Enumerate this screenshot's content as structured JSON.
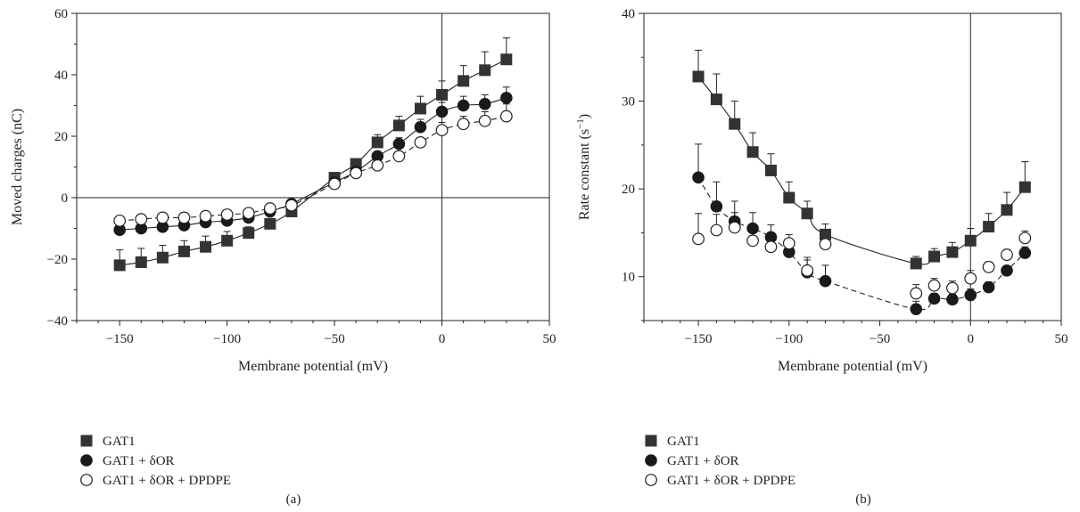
{
  "chart_data": [
    {
      "type": "scatter",
      "panel_label": "(a)",
      "xlabel": "Membrane potential (mV)",
      "ylabel": "Moved charges (nC)",
      "xlim": [
        -170,
        50
      ],
      "ylim": [
        -40,
        60
      ],
      "xticks": [
        -150,
        -100,
        -50,
        0,
        50
      ],
      "yticks": [
        -40,
        -20,
        0,
        20,
        40,
        60
      ],
      "x_tick_labels": [
        "−150",
        "−100",
        "−50",
        "0",
        "50"
      ],
      "y_tick_labels": [
        "−40",
        "−20",
        "0",
        "20",
        "40",
        "60"
      ],
      "reference_lines": {
        "x": 0,
        "y": 0
      },
      "legend_position": "bottom-left",
      "series": [
        {
          "name": "GAT1",
          "marker": "filled-square",
          "fit": "solid",
          "x": [
            -150,
            -140,
            -130,
            -120,
            -110,
            -100,
            -90,
            -80,
            -70,
            -50,
            -40,
            -30,
            -20,
            -10,
            0,
            10,
            20,
            30
          ],
          "y": [
            -22,
            -21,
            -19.5,
            -17.5,
            -16,
            -14,
            -11.5,
            -8.5,
            -4.5,
            6.5,
            11,
            18,
            23.5,
            29,
            33.5,
            38,
            41.5,
            45
          ],
          "err": [
            5,
            4.5,
            4,
            3.5,
            3.5,
            3,
            2,
            1.5,
            1,
            1.5,
            1.5,
            2.5,
            3,
            4,
            4.5,
            5,
            6,
            7
          ]
        },
        {
          "name": "GAT1 + δOR",
          "marker": "filled-circle",
          "fit": "solid",
          "x": [
            -150,
            -140,
            -130,
            -120,
            -110,
            -100,
            -90,
            -80,
            -70,
            -50,
            -40,
            -30,
            -20,
            -10,
            0,
            10,
            20,
            30
          ],
          "y": [
            -10.5,
            -10,
            -9.5,
            -9,
            -8,
            -7.5,
            -6.5,
            -4.5,
            -2,
            5,
            8.5,
            13.5,
            17.5,
            23,
            28,
            30,
            30.5,
            32.5
          ],
          "err": [
            1.5,
            1.5,
            1.5,
            1.5,
            1.5,
            1.5,
            1.5,
            1,
            1,
            1,
            1,
            1.5,
            2,
            2.5,
            3,
            3,
            3,
            3.5
          ]
        },
        {
          "name": "GAT1 + δOR + DPDPE",
          "marker": "open-circle",
          "fit": "dashed",
          "x": [
            -150,
            -140,
            -130,
            -120,
            -110,
            -100,
            -90,
            -80,
            -70,
            -50,
            -40,
            -30,
            -20,
            -10,
            0,
            10,
            20,
            30
          ],
          "y": [
            -7.5,
            -7,
            -6.5,
            -6.5,
            -6,
            -5.5,
            -5,
            -3.5,
            -2.5,
            4.5,
            8,
            10.5,
            13.5,
            18,
            22,
            24,
            25,
            26.5
          ],
          "err": [
            1.5,
            1.5,
            1.5,
            1.5,
            1.5,
            1.5,
            1.5,
            1,
            1,
            1,
            1,
            1.5,
            1.5,
            1.5,
            2.5,
            2.5,
            3,
            4
          ]
        }
      ]
    },
    {
      "type": "scatter",
      "panel_label": "(b)",
      "xlabel": "Membrane potential (mV)",
      "ylabel": "Rate constant (s",
      "ylabel_sup": "−1",
      "ylabel_end": ")",
      "xlim": [
        -180,
        50
      ],
      "ylim": [
        5,
        40
      ],
      "xticks": [
        -150,
        -100,
        -50,
        0,
        50
      ],
      "yticks": [
        10,
        20,
        30,
        40
      ],
      "x_tick_labels": [
        "−150",
        "−100",
        "−50",
        "0",
        "50"
      ],
      "y_tick_labels": [
        "10",
        "20",
        "30",
        "40"
      ],
      "reference_lines": {
        "x": 0
      },
      "legend_position": "bottom-left",
      "series": [
        {
          "name": "GAT1",
          "marker": "filled-square",
          "fit": "solid",
          "x": [
            -150,
            -140,
            -130,
            -120,
            -110,
            -100,
            -90,
            -80,
            -30,
            -20,
            -10,
            0,
            10,
            20,
            30
          ],
          "y": [
            32.8,
            30.2,
            27.4,
            24.2,
            22.1,
            19,
            17.2,
            14.8,
            11.5,
            12.3,
            12.8,
            14.1,
            15.7,
            17.6,
            20.2
          ],
          "err": [
            3,
            2.9,
            2.6,
            2.2,
            1.9,
            1.8,
            1.4,
            1.2,
            0.8,
            0.9,
            1.1,
            1.4,
            1.5,
            2,
            2.9
          ]
        },
        {
          "name": "GAT1 + δOR",
          "marker": "filled-circle",
          "fit": "dashed",
          "x": [
            -150,
            -140,
            -130,
            -120,
            -110,
            -100,
            -90,
            -80,
            -30,
            -20,
            -10,
            0,
            10,
            20,
            30
          ],
          "y": [
            21.3,
            18,
            16.3,
            15.5,
            14.5,
            12.8,
            10.5,
            9.5,
            6.3,
            7.5,
            7.4,
            7.9,
            8.8,
            10.7,
            12.7
          ],
          "err": [
            3.8,
            2.8,
            2.3,
            1.8,
            1.4,
            1.2,
            1.4,
            1.8,
            0.9,
            0.6,
            0.6,
            0.7,
            0.6,
            0.5,
            0.7
          ]
        },
        {
          "name": "GAT1 + δOR + DPDPE",
          "marker": "open-circle",
          "fit": "none",
          "x": [
            -150,
            -140,
            -130,
            -120,
            -110,
            -100,
            -90,
            -80,
            -30,
            -20,
            -10,
            0,
            10,
            20,
            30
          ],
          "y": [
            14.3,
            15.3,
            15.6,
            14.1,
            13.4,
            13.8,
            10.7,
            13.7,
            8.1,
            9,
            8.7,
            9.8,
            11.1,
            12.5,
            14.4
          ],
          "err": [
            2.9,
            1.8,
            1.7,
            1.3,
            1.2,
            1,
            1.5,
            0.6,
            1,
            0.8,
            0.8,
            0.9,
            0.6,
            0.6,
            0.8
          ]
        }
      ]
    }
  ]
}
